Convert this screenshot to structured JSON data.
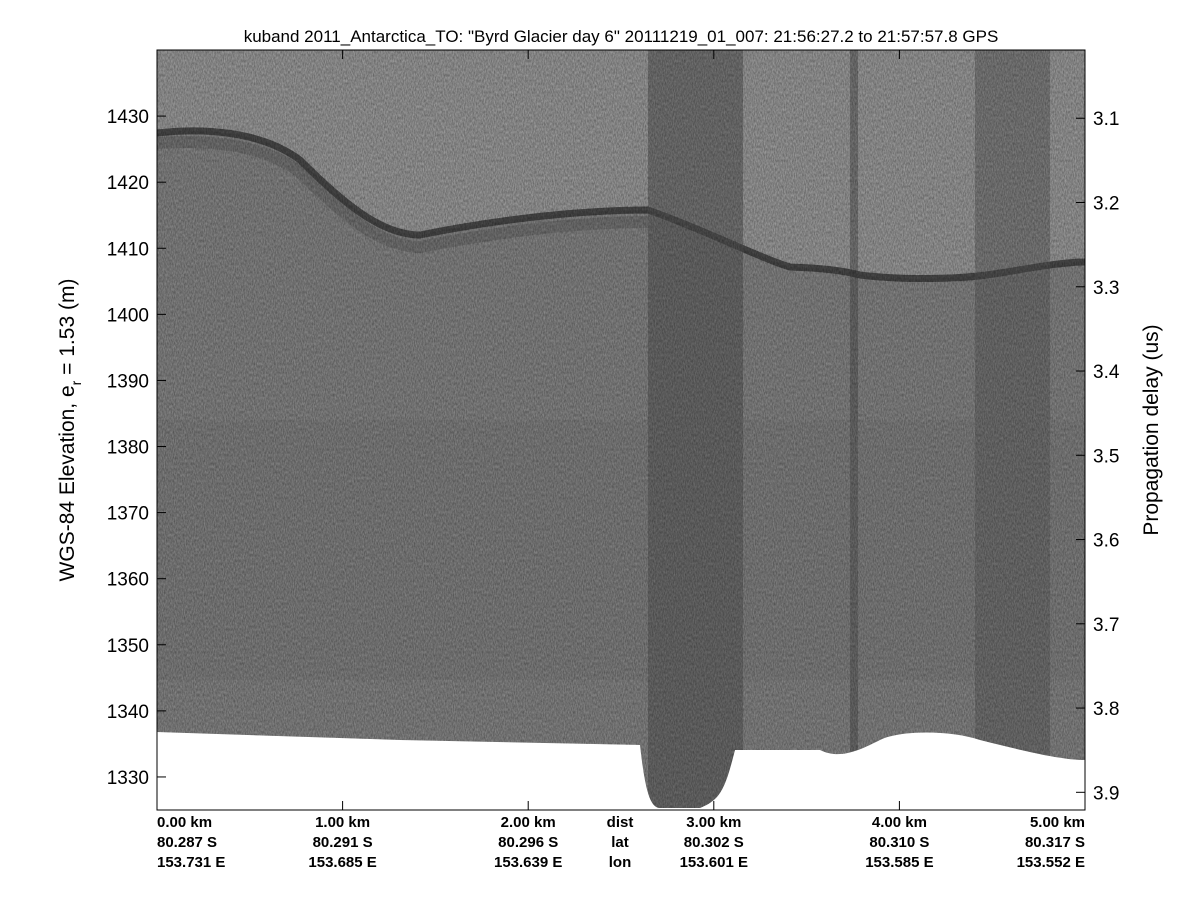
{
  "chart_data": {
    "type": "echogram",
    "title": "kuband 2011_Antarctica_TO: \"Byrd Glacier day 6\"  20111219_01_007: 21:56:27.2 to 21:57:57.8 GPS",
    "ylabel": {
      "text": "WGS-84 Elevation, e",
      "subscript": "r",
      "suffix": " = 1.53 (m)"
    },
    "y2label": "Propagation delay (us)",
    "xlim": [
      0,
      5
    ],
    "xticks": [
      {
        "value": 0,
        "label": "0.00 km"
      },
      {
        "value": 1,
        "label": "1.00 km"
      },
      {
        "value": 2,
        "label": "2.00 km"
      },
      {
        "value": 3,
        "label": "3.00 km"
      },
      {
        "value": 4,
        "label": "4.00 km"
      },
      {
        "value": 5,
        "label": "5.00 km"
      }
    ],
    "lat_labels": [
      "80.287 S",
      "80.291 S",
      "80.296 S",
      "80.302 S",
      "80.310 S",
      "80.317 S"
    ],
    "lon_labels": [
      "153.731 E",
      "153.685 E",
      "153.639 E",
      "153.601 E",
      "153.585 E",
      "153.552 E"
    ],
    "row_names": [
      "dist",
      "lat",
      "lon"
    ],
    "ylim": [
      1325,
      1440
    ],
    "yticks": [
      1330,
      1340,
      1350,
      1360,
      1370,
      1380,
      1390,
      1400,
      1410,
      1420,
      1430
    ],
    "y2lim": [
      3.019,
      3.921
    ],
    "y2ticks": [
      3.1,
      3.2,
      3.3,
      3.4,
      3.5,
      3.6,
      3.7,
      3.8,
      3.9
    ]
  }
}
